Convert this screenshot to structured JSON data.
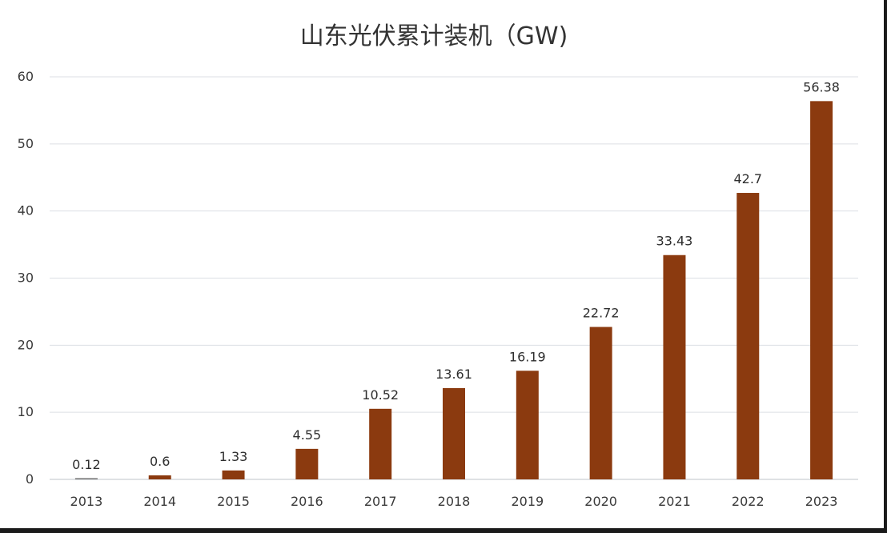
{
  "chart_data": {
    "type": "bar",
    "title": "山东光伏累计装机（GW)",
    "xlabel": "",
    "ylabel": "",
    "categories": [
      "2013",
      "2014",
      "2015",
      "2016",
      "2017",
      "2018",
      "2019",
      "2020",
      "2021",
      "2022",
      "2023"
    ],
    "values": [
      0.12,
      0.6,
      1.33,
      4.55,
      10.52,
      13.61,
      16.19,
      22.72,
      33.43,
      42.7,
      56.38
    ],
    "value_labels": [
      "0.12",
      "0.6",
      "1.33",
      "4.55",
      "10.52",
      "13.61",
      "16.19",
      "22.72",
      "33.43",
      "42.7",
      "56.38"
    ],
    "ylim": [
      0,
      60
    ],
    "yticks": [
      "0",
      "10",
      "20",
      "30",
      "40",
      "50",
      "60"
    ],
    "grid": true,
    "legend": "none",
    "colors": {
      "bar": "#8B3A0F",
      "background": "#ffffff",
      "grid": "#dcdfe4"
    }
  }
}
